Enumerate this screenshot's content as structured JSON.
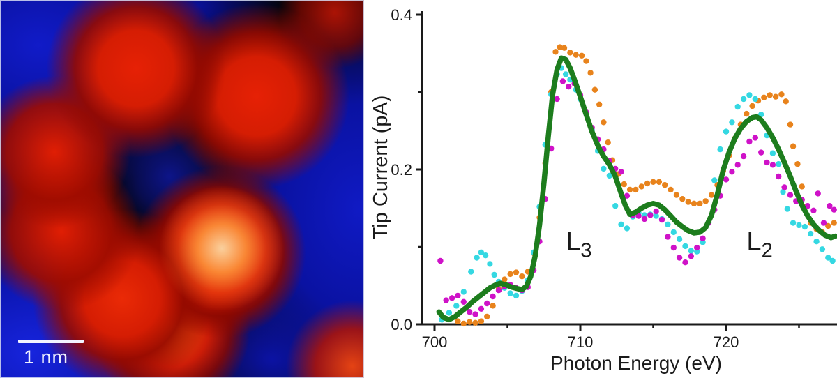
{
  "figure": {
    "description": "Two-panel scientific figure: STM topograph of a ring-shaped molecule (left) and synchrotron X-ray absorption spectra measured as tip current (right)",
    "panels": [
      "stm-topograph",
      "tip-current-spectra"
    ]
  },
  "stm": {
    "scale_bar_label": "1 nm",
    "colors": {
      "substrate_blue": "#0d16b4",
      "molecule_red": "#d51d03",
      "highlight_peach": "#fad7a5",
      "center_hole_navy": "#0a1678",
      "scale_bar_white": "#f2f4ff"
    }
  },
  "chart_data": {
    "type": "line+scatter",
    "title": "",
    "xlabel": "Photon Energy (eV)",
    "ylabel": "Tip Current (pA)",
    "xlim": [
      699.1,
      727.6
    ],
    "ylim": [
      0,
      0.405
    ],
    "grid": false,
    "legend": null,
    "x_ticks_major": {
      "values": [
        700,
        710,
        720
      ],
      "labels": [
        "700",
        "710",
        "720"
      ]
    },
    "x_ticks_minor": [
      705,
      715,
      725
    ],
    "y_ticks_major": {
      "values": [
        0,
        0.2,
        0.4
      ],
      "labels": [
        "0.0",
        "0.2",
        "0.4"
      ]
    },
    "y_ticks_minor": [
      0.1,
      0.3
    ],
    "annotations": [
      {
        "label": "L",
        "subscript": "3",
        "x": 709.9,
        "y": 0.096
      },
      {
        "label": "L",
        "subscript": "2",
        "x": 722.3,
        "y": 0.096
      }
    ],
    "series": [
      {
        "name": "spectrum-orange",
        "type": "scatter",
        "color": "#e8831c",
        "marker": "dot",
        "points": [
          [
            701.6,
            0.004
          ],
          [
            702.0,
            0.001
          ],
          [
            702.4,
            0.003
          ],
          [
            702.8,
            0.002
          ],
          [
            703.2,
            0.004
          ],
          [
            703.6,
            0.01
          ],
          [
            704.0,
            0.024
          ],
          [
            704.4,
            0.046
          ],
          [
            704.8,
            0.058
          ],
          [
            705.2,
            0.065
          ],
          [
            705.6,
            0.067
          ],
          [
            706.0,
            0.062
          ],
          [
            706.4,
            0.068
          ],
          [
            706.8,
            0.092
          ],
          [
            707.2,
            0.138
          ],
          [
            707.6,
            0.208
          ],
          [
            708.0,
            0.3
          ],
          [
            708.3,
            0.352
          ],
          [
            708.6,
            0.358
          ],
          [
            708.9,
            0.357
          ],
          [
            709.3,
            0.351
          ],
          [
            709.7,
            0.348
          ],
          [
            710.1,
            0.347
          ],
          [
            710.4,
            0.34
          ],
          [
            710.7,
            0.325
          ],
          [
            711.0,
            0.303
          ],
          [
            711.3,
            0.284
          ],
          [
            711.6,
            0.261
          ],
          [
            711.9,
            0.235
          ],
          [
            712.2,
            0.212
          ],
          [
            712.6,
            0.194
          ],
          [
            713.0,
            0.181
          ],
          [
            713.4,
            0.174
          ],
          [
            713.8,
            0.174
          ],
          [
            714.2,
            0.178
          ],
          [
            714.6,
            0.182
          ],
          [
            715.0,
            0.184
          ],
          [
            715.4,
            0.184
          ],
          [
            715.8,
            0.18
          ],
          [
            716.2,
            0.174
          ],
          [
            716.6,
            0.167
          ],
          [
            717.0,
            0.162
          ],
          [
            717.4,
            0.158
          ],
          [
            717.8,
            0.156
          ],
          [
            718.2,
            0.156
          ],
          [
            718.6,
            0.159
          ],
          [
            719.0,
            0.167
          ],
          [
            719.4,
            0.18
          ],
          [
            719.8,
            0.198
          ],
          [
            720.2,
            0.218
          ],
          [
            720.6,
            0.24
          ],
          [
            721.0,
            0.258
          ],
          [
            721.4,
            0.272
          ],
          [
            721.8,
            0.282
          ],
          [
            722.2,
            0.289
          ],
          [
            722.6,
            0.293
          ],
          [
            723.0,
            0.296
          ],
          [
            723.4,
            0.294
          ],
          [
            723.8,
            0.297
          ],
          [
            724.1,
            0.288
          ],
          [
            724.4,
            0.258
          ],
          [
            724.6,
            0.23
          ],
          [
            724.9,
            0.207
          ],
          [
            725.2,
            0.178
          ],
          [
            725.5,
            0.152
          ],
          [
            725.8,
            0.131
          ],
          [
            726.2,
            0.123
          ],
          [
            726.6,
            0.119
          ],
          [
            727.0,
            0.127
          ],
          [
            727.4,
            0.131
          ]
        ]
      },
      {
        "name": "spectrum-cyan",
        "type": "scatter",
        "color": "#35d8e2",
        "marker": "dot",
        "points": [
          [
            700.5,
            0.006
          ],
          [
            701.0,
            0.015
          ],
          [
            701.5,
            0.024
          ],
          [
            702.0,
            0.042
          ],
          [
            702.5,
            0.068
          ],
          [
            702.9,
            0.086
          ],
          [
            703.2,
            0.093
          ],
          [
            703.5,
            0.089
          ],
          [
            703.8,
            0.078
          ],
          [
            704.1,
            0.064
          ],
          [
            704.4,
            0.055
          ],
          [
            704.8,
            0.047
          ],
          [
            705.2,
            0.04
          ],
          [
            705.6,
            0.037
          ],
          [
            706.0,
            0.043
          ],
          [
            706.4,
            0.057
          ],
          [
            706.8,
            0.093
          ],
          [
            707.2,
            0.152
          ],
          [
            707.6,
            0.232
          ],
          [
            708.0,
            0.297
          ],
          [
            708.4,
            0.323
          ],
          [
            708.7,
            0.331
          ],
          [
            709.0,
            0.323
          ],
          [
            709.3,
            0.316
          ],
          [
            709.7,
            0.303
          ],
          [
            710.0,
            0.291
          ],
          [
            710.4,
            0.272
          ],
          [
            710.8,
            0.251
          ],
          [
            711.2,
            0.224
          ],
          [
            711.6,
            0.201
          ],
          [
            712.0,
            0.192
          ],
          [
            712.4,
            0.153
          ],
          [
            712.8,
            0.129
          ],
          [
            713.2,
            0.124
          ],
          [
            713.6,
            0.139
          ],
          [
            714.0,
            0.144
          ],
          [
            714.4,
            0.141
          ],
          [
            714.8,
            0.142
          ],
          [
            715.2,
            0.14
          ],
          [
            715.6,
            0.136
          ],
          [
            716.0,
            0.129
          ],
          [
            716.4,
            0.119
          ],
          [
            716.8,
            0.11
          ],
          [
            717.2,
            0.101
          ],
          [
            717.6,
            0.095
          ],
          [
            718.0,
            0.094
          ],
          [
            718.4,
            0.106
          ],
          [
            718.8,
            0.131
          ],
          [
            719.2,
            0.186
          ],
          [
            719.6,
            0.226
          ],
          [
            720.0,
            0.249
          ],
          [
            720.4,
            0.261
          ],
          [
            720.8,
            0.281
          ],
          [
            721.2,
            0.291
          ],
          [
            721.6,
            0.296
          ],
          [
            722.0,
            0.291
          ],
          [
            722.4,
            0.271
          ],
          [
            722.8,
            0.244
          ],
          [
            723.2,
            0.221
          ],
          [
            723.6,
            0.207
          ],
          [
            723.9,
            0.171
          ],
          [
            724.2,
            0.149
          ],
          [
            724.6,
            0.131
          ],
          [
            725.0,
            0.128
          ],
          [
            725.4,
            0.126
          ],
          [
            725.8,
            0.117
          ],
          [
            726.2,
            0.107
          ],
          [
            726.6,
            0.097
          ],
          [
            727.0,
            0.086
          ],
          [
            727.3,
            0.082
          ]
        ]
      },
      {
        "name": "spectrum-magenta",
        "type": "scatter",
        "color": "#cf12c8",
        "marker": "dot",
        "points": [
          [
            700.4,
            0.082
          ],
          [
            700.8,
            0.031
          ],
          [
            701.2,
            0.034
          ],
          [
            701.6,
            0.037
          ],
          [
            702.0,
            0.029
          ],
          [
            702.4,
            0.016
          ],
          [
            702.8,
            0.013
          ],
          [
            703.2,
            0.02
          ],
          [
            703.6,
            0.027
          ],
          [
            704.0,
            0.036
          ],
          [
            704.4,
            0.044
          ],
          [
            704.8,
            0.049
          ],
          [
            705.2,
            0.051
          ],
          [
            705.6,
            0.047
          ],
          [
            706.0,
            0.044
          ],
          [
            706.4,
            0.048
          ],
          [
            706.8,
            0.07
          ],
          [
            707.2,
            0.107
          ],
          [
            707.6,
            0.162
          ],
          [
            708.0,
            0.227
          ],
          [
            708.4,
            0.291
          ],
          [
            708.8,
            0.314
          ],
          [
            709.2,
            0.307
          ],
          [
            709.6,
            0.311
          ],
          [
            710.0,
            0.296
          ],
          [
            710.4,
            0.274
          ],
          [
            710.8,
            0.254
          ],
          [
            711.2,
            0.239
          ],
          [
            711.6,
            0.226
          ],
          [
            712.0,
            0.211
          ],
          [
            712.4,
            0.201
          ],
          [
            712.8,
            0.197
          ],
          [
            713.2,
            0.166
          ],
          [
            713.6,
            0.141
          ],
          [
            714.0,
            0.14
          ],
          [
            714.4,
            0.136
          ],
          [
            714.8,
            0.141
          ],
          [
            715.2,
            0.146
          ],
          [
            715.6,
            0.135
          ],
          [
            716.0,
            0.113
          ],
          [
            716.4,
            0.099
          ],
          [
            716.8,
            0.086
          ],
          [
            717.2,
            0.08
          ],
          [
            717.6,
            0.088
          ],
          [
            718.0,
            0.099
          ],
          [
            718.4,
            0.111
          ],
          [
            718.8,
            0.131
          ],
          [
            719.2,
            0.148
          ],
          [
            719.6,
            0.166
          ],
          [
            720.0,
            0.187
          ],
          [
            720.4,
            0.197
          ],
          [
            720.8,
            0.206
          ],
          [
            721.2,
            0.217
          ],
          [
            721.6,
            0.236
          ],
          [
            722.0,
            0.241
          ],
          [
            722.4,
            0.222
          ],
          [
            722.8,
            0.209
          ],
          [
            723.2,
            0.206
          ],
          [
            723.6,
            0.191
          ],
          [
            724.0,
            0.177
          ],
          [
            724.4,
            0.167
          ],
          [
            724.8,
            0.159
          ],
          [
            725.2,
            0.161
          ],
          [
            725.6,
            0.153
          ],
          [
            726.0,
            0.147
          ],
          [
            726.3,
            0.169
          ],
          [
            726.7,
            0.131
          ],
          [
            727.1,
            0.153
          ],
          [
            727.4,
            0.148
          ]
        ]
      },
      {
        "name": "average-green",
        "type": "line",
        "color": "#1d7d1d",
        "stroke_width": 7.5,
        "points": [
          [
            700.3,
            0.016
          ],
          [
            700.6,
            0.009
          ],
          [
            701.0,
            0.006
          ],
          [
            701.4,
            0.01
          ],
          [
            701.8,
            0.016
          ],
          [
            702.2,
            0.022
          ],
          [
            702.6,
            0.029
          ],
          [
            703.0,
            0.035
          ],
          [
            703.4,
            0.041
          ],
          [
            703.8,
            0.047
          ],
          [
            704.2,
            0.051
          ],
          [
            704.5,
            0.053
          ],
          [
            704.9,
            0.051
          ],
          [
            705.3,
            0.048
          ],
          [
            705.7,
            0.046
          ],
          [
            706.0,
            0.045
          ],
          [
            706.3,
            0.049
          ],
          [
            706.6,
            0.062
          ],
          [
            706.9,
            0.088
          ],
          [
            707.2,
            0.128
          ],
          [
            707.5,
            0.182
          ],
          [
            707.8,
            0.242
          ],
          [
            708.1,
            0.297
          ],
          [
            708.4,
            0.329
          ],
          [
            708.7,
            0.344
          ],
          [
            709.0,
            0.342
          ],
          [
            709.3,
            0.331
          ],
          [
            709.6,
            0.316
          ],
          [
            710.0,
            0.294
          ],
          [
            710.4,
            0.271
          ],
          [
            710.8,
            0.249
          ],
          [
            711.2,
            0.231
          ],
          [
            711.6,
            0.217
          ],
          [
            712.0,
            0.206
          ],
          [
            712.4,
            0.191
          ],
          [
            712.8,
            0.169
          ],
          [
            713.1,
            0.153
          ],
          [
            713.4,
            0.142
          ],
          [
            713.8,
            0.145
          ],
          [
            714.2,
            0.15
          ],
          [
            714.6,
            0.154
          ],
          [
            715.0,
            0.156
          ],
          [
            715.4,
            0.154
          ],
          [
            715.8,
            0.148
          ],
          [
            716.2,
            0.14
          ],
          [
            716.6,
            0.132
          ],
          [
            717.0,
            0.126
          ],
          [
            717.4,
            0.121
          ],
          [
            717.8,
            0.118
          ],
          [
            718.2,
            0.119
          ],
          [
            718.6,
            0.125
          ],
          [
            719.0,
            0.141
          ],
          [
            719.4,
            0.168
          ],
          [
            719.8,
            0.199
          ],
          [
            720.2,
            0.222
          ],
          [
            720.6,
            0.24
          ],
          [
            721.0,
            0.253
          ],
          [
            721.4,
            0.262
          ],
          [
            721.8,
            0.267
          ],
          [
            722.1,
            0.268
          ],
          [
            722.4,
            0.264
          ],
          [
            722.8,
            0.254
          ],
          [
            723.2,
            0.241
          ],
          [
            723.6,
            0.226
          ],
          [
            724.0,
            0.209
          ],
          [
            724.4,
            0.191
          ],
          [
            724.8,
            0.172
          ],
          [
            725.2,
            0.154
          ],
          [
            725.6,
            0.14
          ],
          [
            726.0,
            0.129
          ],
          [
            726.4,
            0.121
          ],
          [
            726.8,
            0.115
          ],
          [
            727.2,
            0.112
          ],
          [
            727.5,
            0.114
          ]
        ]
      }
    ]
  }
}
